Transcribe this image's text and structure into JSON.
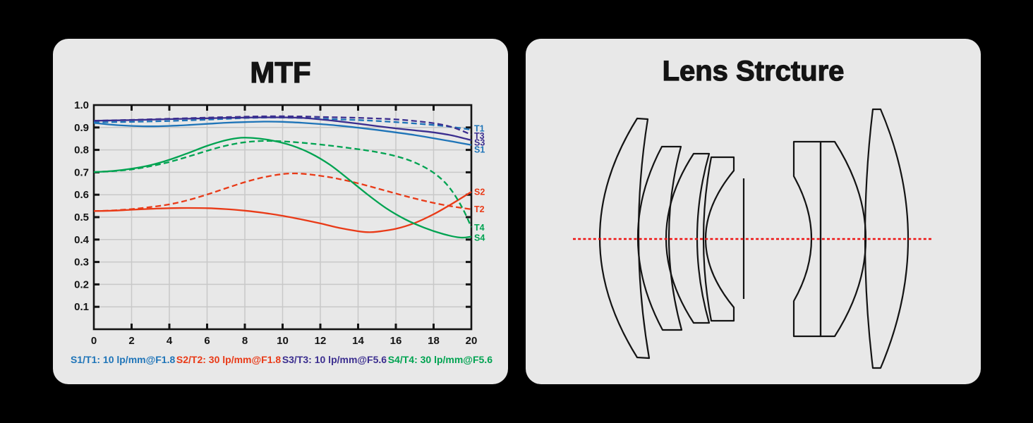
{
  "page_background": "#000000",
  "panels": {
    "mtf": {
      "title": "MTF",
      "panel_color": "#e8e8e8",
      "legend": [
        {
          "label": "S1/T1: 10 lp/mm@F1.8",
          "color": "#1e74b8"
        },
        {
          "label": "S2/T2: 30 lp/mm@F1.8",
          "color": "#e93a17"
        },
        {
          "label": "S3/T3: 10 lp/mm@F5.6",
          "color": "#3b2e8f"
        },
        {
          "label": "S4/T4: 30 lp/mm@F5.6",
          "color": "#00a351"
        }
      ]
    },
    "lens": {
      "title": "Lens Strcture",
      "panel_color": "#e8e8e8",
      "axis_color": "#ee1111",
      "outline_color": "#141414",
      "element_count": 7
    }
  },
  "chart_data": {
    "type": "line",
    "title": "MTF",
    "xlabel": "",
    "ylabel": "",
    "xlim": [
      0,
      20
    ],
    "ylim": [
      0,
      1.0
    ],
    "x_ticks": [
      0,
      2,
      4,
      6,
      8,
      10,
      12,
      14,
      16,
      18,
      20
    ],
    "y_ticks": [
      0.1,
      0.2,
      0.3,
      0.4,
      0.5,
      0.6,
      0.7,
      0.8,
      0.9,
      1.0
    ],
    "grid": true,
    "grid_color": "#c8c8c8",
    "axis_text_color": "#141414",
    "legend_position": "bottom",
    "series": [
      {
        "name": "S2",
        "legend": "S2/T2: 30 lp/mm@F1.8",
        "dash": "solid",
        "color": "#e93a17",
        "end_label": "S2",
        "end_label_v": 0.611,
        "points": [
          [
            0,
            0.527
          ],
          [
            1,
            0.529
          ],
          [
            2,
            0.533
          ],
          [
            3,
            0.537
          ],
          [
            4,
            0.54
          ],
          [
            5,
            0.541
          ],
          [
            6,
            0.54
          ],
          [
            7,
            0.536
          ],
          [
            8,
            0.529
          ],
          [
            9,
            0.519
          ],
          [
            10,
            0.506
          ],
          [
            11,
            0.49
          ],
          [
            12,
            0.472
          ],
          [
            13,
            0.452
          ],
          [
            14,
            0.437
          ],
          [
            14.5,
            0.433
          ],
          [
            15,
            0.435
          ],
          [
            16,
            0.448
          ],
          [
            17,
            0.474
          ],
          [
            18,
            0.513
          ],
          [
            19,
            0.561
          ],
          [
            20,
            0.613
          ]
        ]
      },
      {
        "name": "T2",
        "legend": "S2/T2: 30 lp/mm@F1.8",
        "dash": "dashed",
        "color": "#e93a17",
        "end_label": "T2",
        "end_label_v": 0.535,
        "points": [
          [
            0,
            0.527
          ],
          [
            1,
            0.53
          ],
          [
            2,
            0.536
          ],
          [
            3,
            0.545
          ],
          [
            4,
            0.557
          ],
          [
            5,
            0.576
          ],
          [
            6,
            0.601
          ],
          [
            7,
            0.629
          ],
          [
            8,
            0.656
          ],
          [
            9,
            0.678
          ],
          [
            10,
            0.692
          ],
          [
            10.7,
            0.695
          ],
          [
            11.5,
            0.69
          ],
          [
            12.5,
            0.678
          ],
          [
            13.5,
            0.661
          ],
          [
            14.5,
            0.64
          ],
          [
            15.5,
            0.617
          ],
          [
            16.5,
            0.594
          ],
          [
            17.5,
            0.573
          ],
          [
            18.5,
            0.555
          ],
          [
            19.2,
            0.545
          ],
          [
            20,
            0.535
          ]
        ]
      },
      {
        "name": "S4",
        "legend": "S4/T4: 30 lp/mm@F5.6",
        "dash": "solid",
        "color": "#00a351",
        "end_label": "S4",
        "end_label_v": 0.408,
        "points": [
          [
            0,
            0.701
          ],
          [
            1,
            0.706
          ],
          [
            2,
            0.716
          ],
          [
            3,
            0.732
          ],
          [
            4,
            0.756
          ],
          [
            5,
            0.786
          ],
          [
            6,
            0.818
          ],
          [
            7,
            0.843
          ],
          [
            7.8,
            0.854
          ],
          [
            8.6,
            0.852
          ],
          [
            9.5,
            0.841
          ],
          [
            10.5,
            0.819
          ],
          [
            11.5,
            0.784
          ],
          [
            12.5,
            0.734
          ],
          [
            13.5,
            0.669
          ],
          [
            14.5,
            0.601
          ],
          [
            15.5,
            0.539
          ],
          [
            16.5,
            0.49
          ],
          [
            17.5,
            0.453
          ],
          [
            18.5,
            0.425
          ],
          [
            19.4,
            0.409
          ],
          [
            20,
            0.413
          ]
        ]
      },
      {
        "name": "T4",
        "legend": "S4/T4: 30 lp/mm@F5.6",
        "dash": "dashed",
        "color": "#00a351",
        "end_label": "T4",
        "end_label_v": 0.453,
        "points": [
          [
            0,
            0.701
          ],
          [
            1,
            0.705
          ],
          [
            2,
            0.713
          ],
          [
            3,
            0.727
          ],
          [
            4,
            0.746
          ],
          [
            5,
            0.77
          ],
          [
            6,
            0.796
          ],
          [
            7,
            0.819
          ],
          [
            8,
            0.834
          ],
          [
            9,
            0.84
          ],
          [
            10,
            0.838
          ],
          [
            11,
            0.832
          ],
          [
            12,
            0.824
          ],
          [
            13,
            0.814
          ],
          [
            14,
            0.803
          ],
          [
            15,
            0.79
          ],
          [
            16,
            0.772
          ],
          [
            17,
            0.744
          ],
          [
            18,
            0.698
          ],
          [
            18.8,
            0.636
          ],
          [
            19.5,
            0.545
          ],
          [
            20,
            0.455
          ]
        ]
      },
      {
        "name": "S1",
        "legend": "S1/T1: 10 lp/mm@F1.8",
        "dash": "solid",
        "color": "#1e74b8",
        "end_label": "S1",
        "end_label_v": 0.801,
        "points": [
          [
            0,
            0.92
          ],
          [
            1,
            0.912
          ],
          [
            2,
            0.907
          ],
          [
            3,
            0.905
          ],
          [
            4,
            0.907
          ],
          [
            5,
            0.911
          ],
          [
            6,
            0.916
          ],
          [
            7,
            0.921
          ],
          [
            8,
            0.924
          ],
          [
            9,
            0.926
          ],
          [
            10,
            0.925
          ],
          [
            11,
            0.921
          ],
          [
            12,
            0.915
          ],
          [
            13,
            0.908
          ],
          [
            14,
            0.899
          ],
          [
            15,
            0.889
          ],
          [
            16,
            0.878
          ],
          [
            17,
            0.866
          ],
          [
            18,
            0.852
          ],
          [
            19,
            0.837
          ],
          [
            20,
            0.822
          ]
        ]
      },
      {
        "name": "T1",
        "legend": "S1/T1: 10 lp/mm@F1.8",
        "dash": "dashed",
        "color": "#1e74b8",
        "end_label": "T1",
        "end_label_v": 0.895,
        "points": [
          [
            0,
            0.923
          ],
          [
            2,
            0.925
          ],
          [
            4,
            0.929
          ],
          [
            6,
            0.935
          ],
          [
            8,
            0.942
          ],
          [
            9,
            0.944
          ],
          [
            10,
            0.944
          ],
          [
            11,
            0.942
          ],
          [
            12,
            0.939
          ],
          [
            13,
            0.936
          ],
          [
            14,
            0.933
          ],
          [
            15,
            0.929
          ],
          [
            16,
            0.924
          ],
          [
            17,
            0.918
          ],
          [
            18,
            0.911
          ],
          [
            19,
            0.902
          ],
          [
            20,
            0.89
          ]
        ]
      },
      {
        "name": "S3",
        "legend": "S3/T3: 10 lp/mm@F5.6",
        "dash": "solid",
        "color": "#3b2e8f",
        "end_label": "S3",
        "end_label_v": 0.831,
        "points": [
          [
            0,
            0.93
          ],
          [
            2,
            0.933
          ],
          [
            4,
            0.937
          ],
          [
            6,
            0.941
          ],
          [
            8,
            0.944
          ],
          [
            9,
            0.945
          ],
          [
            10,
            0.945
          ],
          [
            11,
            0.943
          ],
          [
            12,
            0.936
          ],
          [
            13,
            0.927
          ],
          [
            14,
            0.917
          ],
          [
            15,
            0.906
          ],
          [
            16,
            0.896
          ],
          [
            17,
            0.887
          ],
          [
            18,
            0.878
          ],
          [
            19,
            0.864
          ],
          [
            20,
            0.843
          ]
        ]
      },
      {
        "name": "T3",
        "legend": "S3/T3: 10 lp/mm@F5.6",
        "dash": "dashed",
        "color": "#3b2e8f",
        "end_label": "T3",
        "end_label_v": 0.862,
        "points": [
          [
            0,
            0.93
          ],
          [
            2,
            0.934
          ],
          [
            4,
            0.939
          ],
          [
            6,
            0.944
          ],
          [
            8,
            0.948
          ],
          [
            9.5,
            0.95
          ],
          [
            11,
            0.949
          ],
          [
            12,
            0.947
          ],
          [
            13,
            0.945
          ],
          [
            14,
            0.943
          ],
          [
            15,
            0.94
          ],
          [
            16,
            0.936
          ],
          [
            17,
            0.929
          ],
          [
            18,
            0.919
          ],
          [
            19,
            0.901
          ],
          [
            20,
            0.868
          ]
        ]
      }
    ]
  }
}
